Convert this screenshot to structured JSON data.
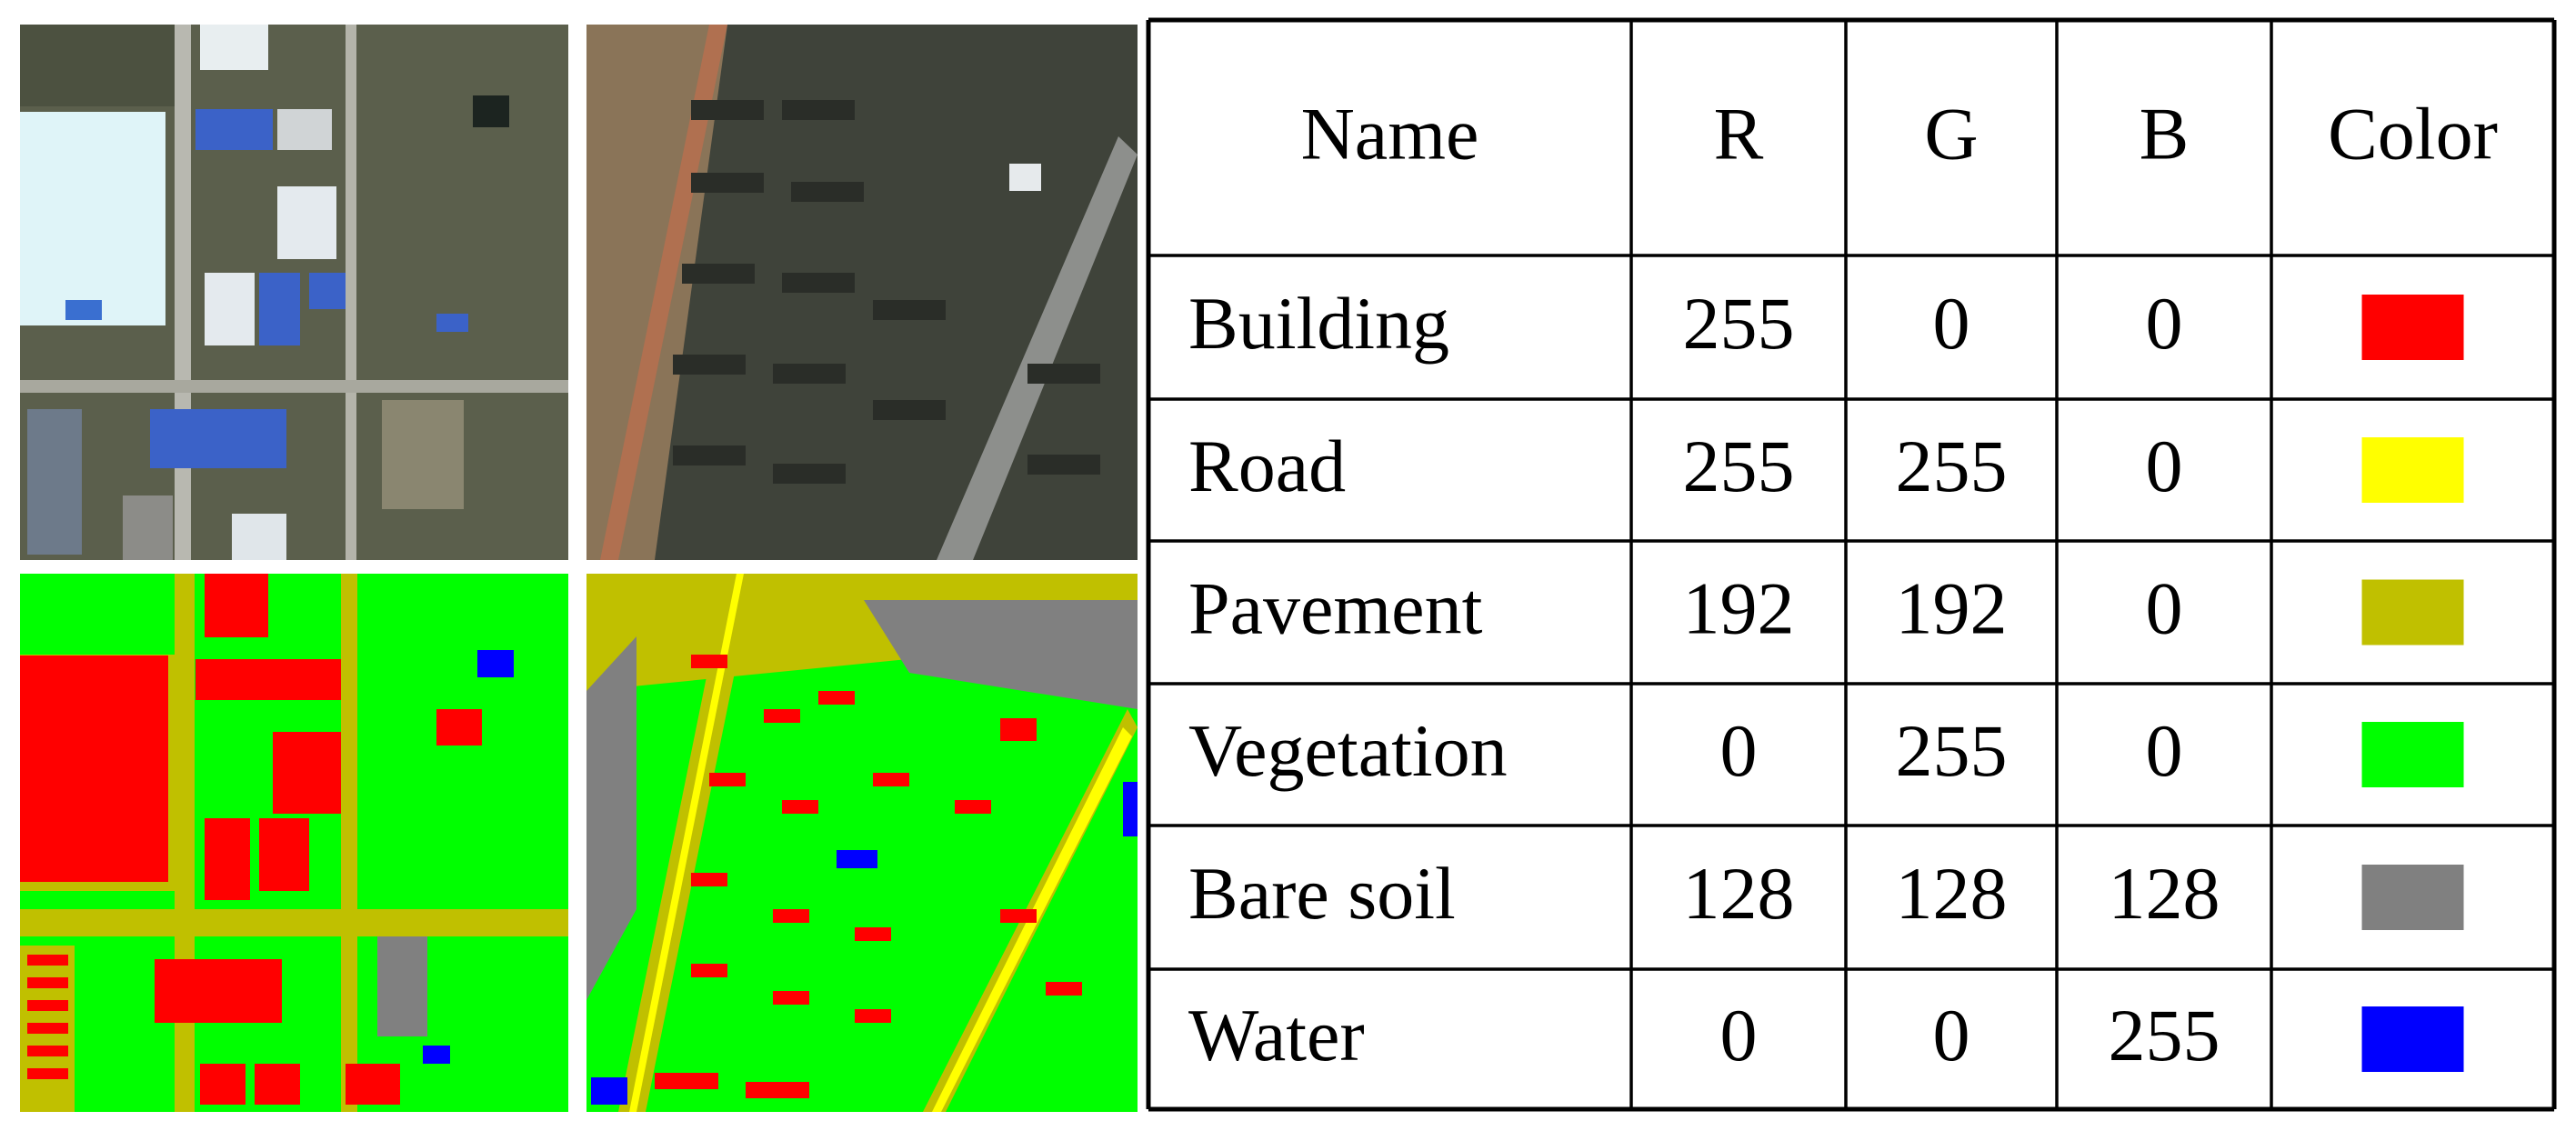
{
  "table": {
    "header": [
      "Name",
      "R",
      "G",
      "B",
      "Color"
    ],
    "rows": [
      [
        "Building",
        255,
        0,
        0
      ],
      [
        "Road",
        255,
        255,
        0
      ],
      [
        "Pavement",
        192,
        192,
        0
      ],
      [
        "Vegetation",
        0,
        255,
        0
      ],
      [
        "Bare soil",
        128,
        128,
        128
      ],
      [
        "Water",
        0,
        0,
        255
      ]
    ]
  }
}
